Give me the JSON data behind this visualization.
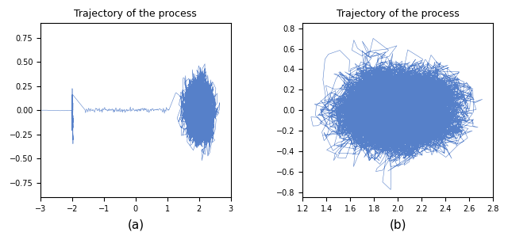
{
  "title": "Trajectory of the process",
  "label_a": "(a)",
  "label_b": "(b)",
  "line_color": "#4472C4",
  "line_width": 0.4,
  "plot_a": {
    "xlim": [
      -3,
      3
    ],
    "ylim": [
      -0.9,
      0.9
    ],
    "xticks": [
      -3,
      -2,
      -1,
      0,
      1,
      2,
      3
    ],
    "yticks": [
      -0.75,
      -0.5,
      -0.25,
      0.0,
      0.25,
      0.5,
      0.75
    ]
  },
  "plot_b": {
    "xlim": [
      1.2,
      2.8
    ],
    "ylim": [
      -0.85,
      0.85
    ],
    "xticks": [
      1.2,
      1.4,
      1.6,
      1.8,
      2.0,
      2.2,
      2.4,
      2.6,
      2.8
    ],
    "yticks": [
      -0.8,
      -0.6,
      -0.4,
      -0.2,
      0.0,
      0.2,
      0.4,
      0.6,
      0.8
    ]
  },
  "seed_a": 7,
  "seed_b": 99
}
